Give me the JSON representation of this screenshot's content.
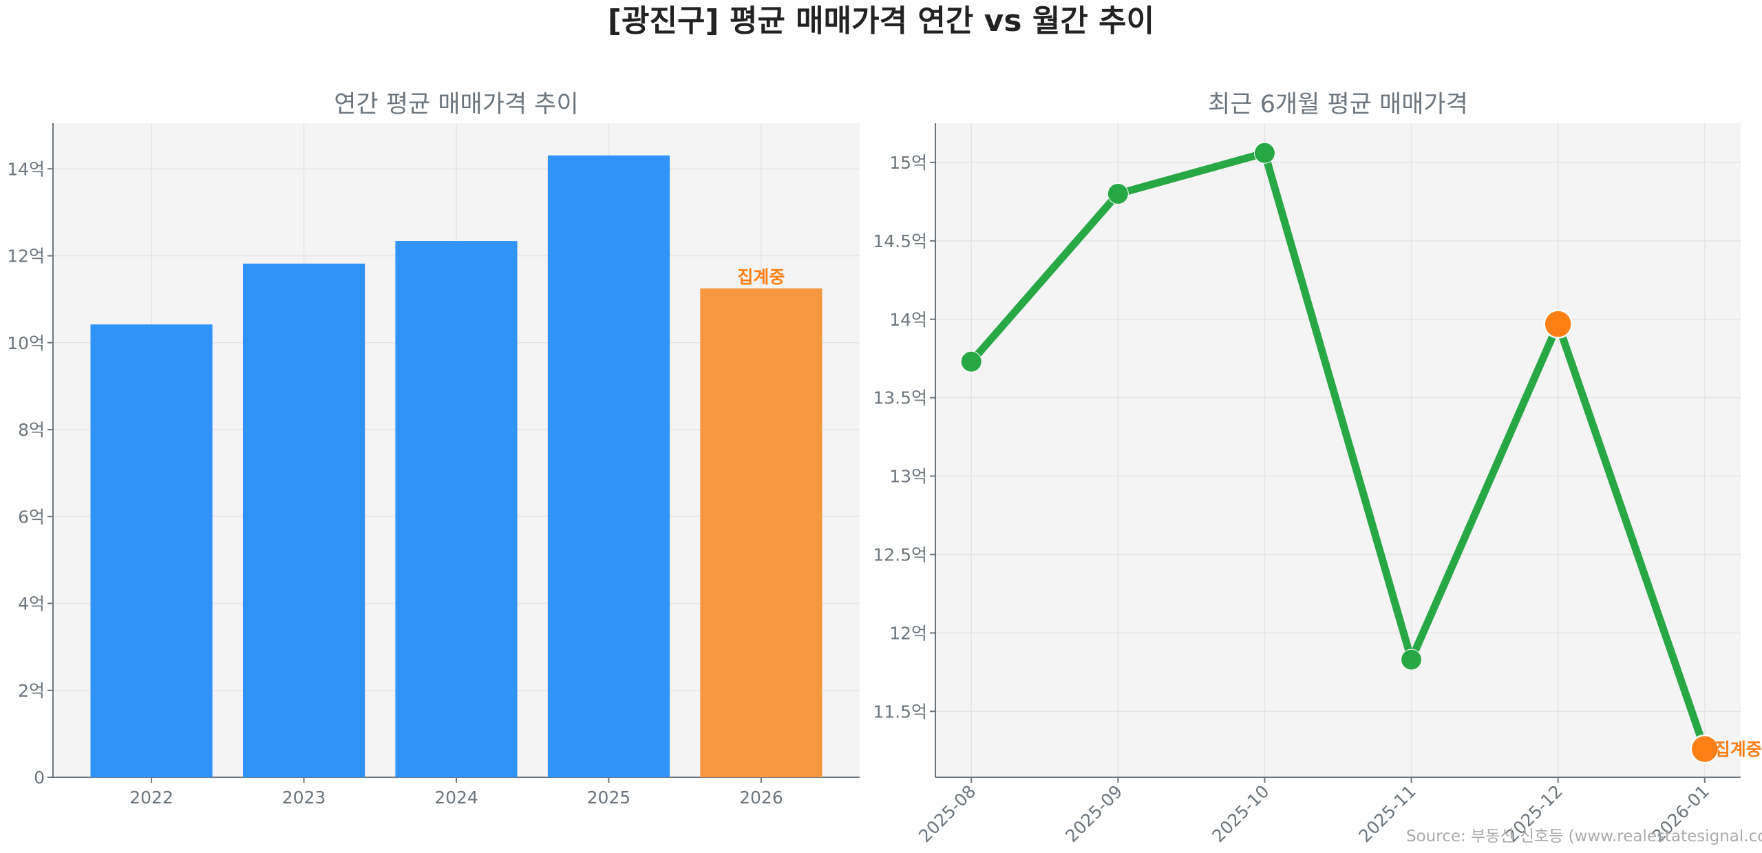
{
  "title": "[광진구] 평균 매매가격 연간 vs 월간 추이",
  "source": "Source: 부동산 신호등 (www.realestatesignal.co.kr)",
  "colors": {
    "bar": "#3093fa",
    "bar_partial": "#f7973f",
    "line": "#28a745",
    "marker_partial": "#fd7f16",
    "annotation": "#fd7f16",
    "plot_bg": "#f4f4f4",
    "text": "#6c757d"
  },
  "chart_data": [
    {
      "type": "bar",
      "title": "연간 평균 매매가격 추이",
      "categories": [
        "2022",
        "2023",
        "2024",
        "2025",
        "2026"
      ],
      "values": [
        10.42,
        11.82,
        12.34,
        14.31,
        11.25
      ],
      "unit": "억",
      "partial_flags": [
        false,
        false,
        false,
        false,
        true
      ],
      "annotation": "집계중",
      "ylim": [
        0,
        15.05
      ],
      "yticks": [
        0,
        2,
        4,
        6,
        8,
        10,
        12,
        14
      ],
      "ytick_labels": [
        "0",
        "2억",
        "4억",
        "6억",
        "8억",
        "10억",
        "12억",
        "14억"
      ],
      "grid": true
    },
    {
      "type": "line",
      "title": "최근 6개월 평균 매매가격",
      "categories": [
        "2025-08",
        "2025-09",
        "2025-10",
        "2025-11",
        "2025-12",
        "2026-01"
      ],
      "values": [
        13.73,
        14.8,
        15.06,
        11.83,
        13.97,
        11.26
      ],
      "unit": "억",
      "partial_flags": [
        false,
        false,
        false,
        false,
        true,
        true
      ],
      "annotation": "집계중",
      "ylim": [
        11.08,
        15.25
      ],
      "yticks": [
        11.5,
        12,
        12.5,
        13,
        13.5,
        14,
        14.5,
        15
      ],
      "ytick_labels": [
        "11.5억",
        "12억",
        "12.5억",
        "13억",
        "13.5억",
        "14억",
        "14.5억",
        "15억"
      ],
      "grid": true
    }
  ]
}
